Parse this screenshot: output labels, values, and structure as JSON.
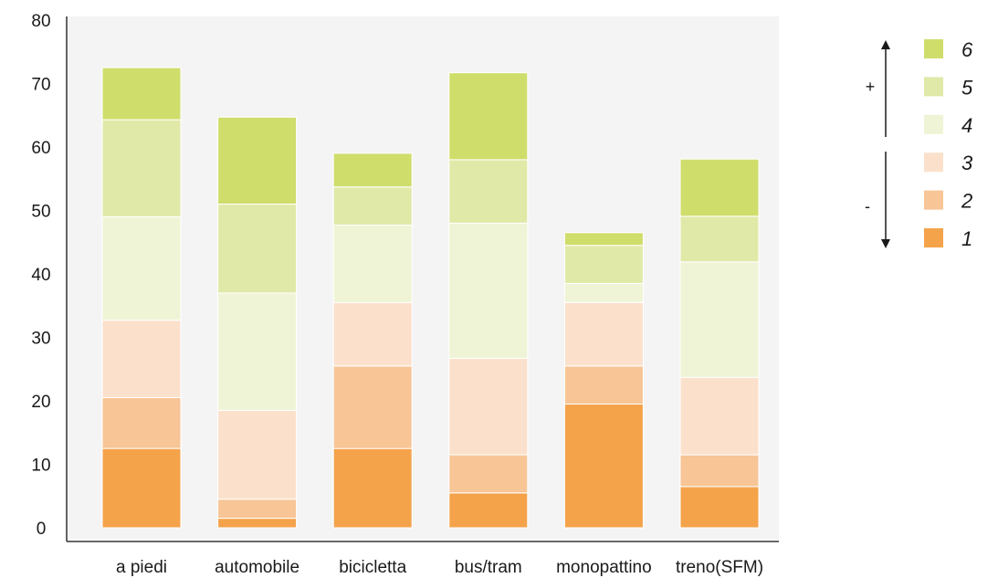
{
  "chart_data": {
    "type": "bar",
    "stacked": true,
    "categories": [
      "a piedi",
      "automobile",
      "bicicletta",
      "bus/tram",
      "monopattino",
      "treno(SFM)"
    ],
    "series": [
      {
        "name": "1",
        "color": "#f4a34b",
        "values": [
          12.5,
          1.5,
          12.5,
          5.5,
          19.5,
          6.5
        ]
      },
      {
        "name": "2",
        "color": "#f7c596",
        "values": [
          8,
          3,
          13,
          6,
          6,
          5
        ]
      },
      {
        "name": "3",
        "color": "#fbe1cc",
        "values": [
          12.2,
          14,
          10,
          15.2,
          10,
          12.2
        ]
      },
      {
        "name": "4",
        "color": "#eff4d6",
        "values": [
          16.3,
          18.5,
          12.2,
          21.3,
          3,
          18.2
        ]
      },
      {
        "name": "5",
        "color": "#e1e9a8",
        "values": [
          15.3,
          14,
          6,
          10,
          6,
          7.2
        ]
      },
      {
        "name": "6",
        "color": "#cfdd6b",
        "values": [
          8.2,
          13.7,
          5.3,
          13.7,
          2,
          9
        ]
      }
    ],
    "yticks": [
      0,
      10,
      20,
      30,
      40,
      50,
      60,
      70,
      80
    ],
    "ylim": [
      0,
      80
    ],
    "grid": false,
    "legend": {
      "position": "right",
      "order": [
        "6",
        "5",
        "4",
        "3",
        "2",
        "1"
      ],
      "plus_label": "+",
      "minus_label": "-"
    },
    "plot_background": "#f4f4f4"
  }
}
